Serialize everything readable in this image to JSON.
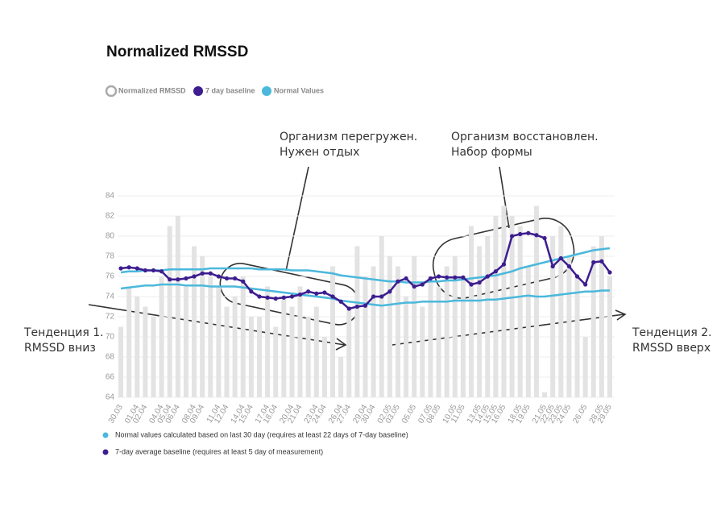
{
  "chart_data": {
    "type": "bar-line",
    "title": "Normalized RMSSD",
    "categories": [
      "30.03",
      null,
      "01.04",
      "02.04",
      null,
      "04.04",
      "05.04",
      "06.04",
      null,
      "08.04",
      "09.04",
      null,
      "11.04",
      "12.04",
      null,
      "14.04",
      "15.04",
      null,
      "17.04",
      "18.04",
      null,
      "20.04",
      "21.04",
      null,
      "23.04",
      "24.04",
      null,
      "26.04",
      "27.04",
      null,
      "29.04",
      "30.04",
      null,
      "02.05",
      "03.05",
      null,
      "05.05",
      null,
      "07.05",
      "08.05",
      null,
      "10.05",
      "11.05",
      null,
      "13.05",
      "14.05",
      "15.05",
      "16.05",
      null,
      "18.05",
      "19.05",
      null,
      "21.05",
      "22.05",
      "23.05",
      "24.05",
      null,
      "26.05",
      null,
      "28.05",
      "29.05"
    ],
    "ylim": [
      64,
      84
    ],
    "yticks": [
      64,
      66,
      68,
      70,
      72,
      74,
      76,
      78,
      80,
      82,
      84
    ],
    "grid": true,
    "series": [
      {
        "name": "Normalized RMSSD",
        "color": "#e3e3e3",
        "values": [
          71,
          75,
          74,
          73,
          72,
          76,
          81,
          82,
          75,
          79,
          78,
          76,
          75,
          73,
          74,
          76,
          72,
          72,
          75,
          71,
          74,
          73,
          75,
          72,
          73,
          70,
          77,
          68,
          73,
          79,
          76,
          77,
          80,
          78,
          77,
          74,
          78,
          73,
          76,
          75,
          77,
          78,
          76,
          81,
          79,
          80,
          82,
          83,
          82,
          81,
          77,
          83,
          64.5,
          80,
          81,
          78,
          76,
          70,
          79,
          80,
          76
        ]
      },
      {
        "name": "7 day baseline",
        "color": "#3d1d8f",
        "values": [
          76.8,
          76.9,
          76.8,
          76.6,
          76.6,
          76.5,
          75.7,
          75.7,
          75.8,
          76.0,
          76.3,
          76.3,
          76.0,
          75.8,
          75.8,
          75.5,
          74.5,
          74.0,
          73.9,
          73.8,
          73.9,
          74.0,
          74.2,
          74.5,
          74.3,
          74.4,
          74.0,
          73.5,
          72.8,
          73.0,
          73.1,
          74.0,
          74.0,
          74.5,
          75.5,
          75.8,
          75.0,
          75.2,
          75.8,
          76.0,
          75.9,
          75.9,
          75.9,
          75.2,
          75.4,
          76.0,
          76.5,
          77.2,
          80.0,
          80.2,
          80.3,
          80.1,
          79.8,
          77.0,
          77.8,
          77.0,
          76.0,
          75.2,
          77.4,
          77.5,
          76.4
        ]
      },
      {
        "name": "Normal Values",
        "color": "#4bb8dc",
        "upper": [
          76.4,
          76.5,
          76.5,
          76.6,
          76.6,
          76.6,
          76.7,
          76.7,
          76.7,
          76.7,
          76.7,
          76.8,
          76.8,
          76.8,
          76.8,
          76.8,
          76.8,
          76.7,
          76.7,
          76.7,
          76.7,
          76.6,
          76.6,
          76.6,
          76.5,
          76.4,
          76.3,
          76.1,
          76.0,
          75.9,
          75.8,
          75.7,
          75.6,
          75.5,
          75.5,
          75.4,
          75.4,
          75.4,
          75.5,
          75.5,
          75.6,
          75.6,
          75.7,
          75.8,
          75.9,
          76.0,
          76.1,
          76.3,
          76.5,
          76.8,
          77.0,
          77.2,
          77.4,
          77.6,
          77.8,
          78.0,
          78.2,
          78.4,
          78.6,
          78.7,
          78.8
        ],
        "lower": [
          74.8,
          74.9,
          75.0,
          75.1,
          75.1,
          75.2,
          75.2,
          75.2,
          75.1,
          75.1,
          75.1,
          75.0,
          75.0,
          75.0,
          75.0,
          74.9,
          74.8,
          74.7,
          74.6,
          74.5,
          74.4,
          74.3,
          74.2,
          74.1,
          74.0,
          73.9,
          73.8,
          73.6,
          73.5,
          73.4,
          73.3,
          73.2,
          73.1,
          73.2,
          73.3,
          73.4,
          73.4,
          73.5,
          73.5,
          73.5,
          73.5,
          73.6,
          73.6,
          73.6,
          73.6,
          73.7,
          73.7,
          73.8,
          73.9,
          74.0,
          74.1,
          74.0,
          74.0,
          74.1,
          74.2,
          74.3,
          74.4,
          74.5,
          74.5,
          74.6,
          74.6
        ]
      }
    ],
    "notes": [
      "Normal values calculated based on last 30 day (requires at least 22 days of 7-day baseline)",
      "7-day average baseline (requires at least 5 day of measurement)"
    ],
    "annotations": [
      {
        "lines": [
          "Организм перегружен.",
          "Нужен отдых"
        ]
      },
      {
        "lines": [
          "Организм восстановлен.",
          "Набор формы"
        ]
      },
      {
        "lines": [
          "Тенденция 1.",
          "RMSSD вниз"
        ]
      },
      {
        "lines": [
          "Тенденция 2.",
          "RMSSD вверх"
        ]
      }
    ]
  }
}
